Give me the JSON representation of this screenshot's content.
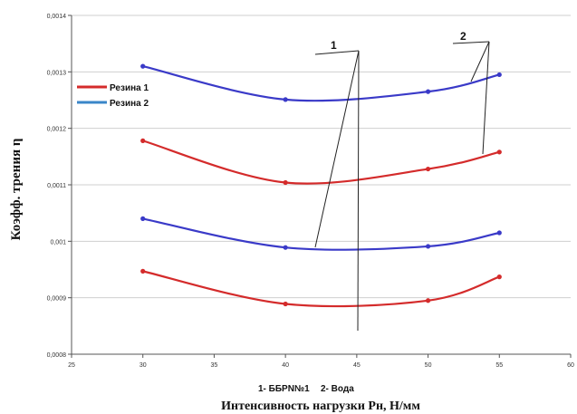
{
  "chart_data": {
    "type": "line",
    "xlabel": "Интенсивность нагрузки Рн, Н/мм",
    "ylabel": "Коэфф. трения η",
    "xlim": [
      25,
      60
    ],
    "ylim": [
      0.0008,
      0.0014
    ],
    "x_ticks": [
      "25",
      "30",
      "35",
      "40",
      "45",
      "50",
      "55",
      "60"
    ],
    "y_ticks": [
      "0,0008",
      "0,0009",
      "0,001",
      "0,0011",
      "0,0012",
      "0,0013",
      "0,0014"
    ],
    "grid": "horizontal",
    "legend": [
      {
        "label": "Резина 1",
        "color": "#d42b2b"
      },
      {
        "label": "Резина 2",
        "color": "#3a86c8"
      }
    ],
    "series": [
      {
        "color": "#3a3ac8",
        "x": [
          30,
          40,
          50,
          55
        ],
        "y": [
          0.00131,
          0.001251,
          0.001265,
          0.001295
        ]
      },
      {
        "color": "#d42b2b",
        "x": [
          30,
          40,
          50,
          55
        ],
        "y": [
          0.001178,
          0.001104,
          0.001128,
          0.001158
        ]
      },
      {
        "color": "#3a3ac8",
        "x": [
          30,
          40,
          50,
          55
        ],
        "y": [
          0.00104,
          0.000989,
          0.000991,
          0.001015
        ]
      },
      {
        "color": "#d42b2b",
        "x": [
          30,
          40,
          50,
          55
        ],
        "y": [
          0.000947,
          0.000889,
          0.000895,
          0.000937
        ]
      }
    ],
    "annotations": [
      "1",
      "2"
    ],
    "note": [
      "1- ББРN№1",
      "2- Вода"
    ]
  }
}
